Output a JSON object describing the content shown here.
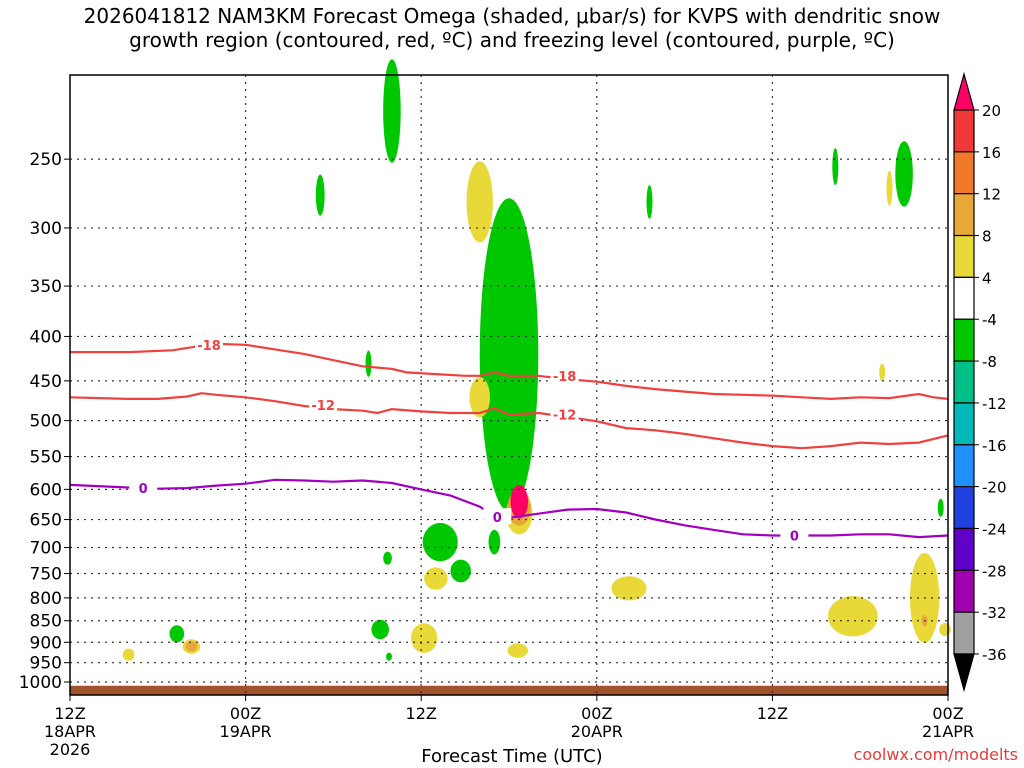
{
  "chart_data": {
    "type": "heatmap",
    "title_line1": "2026041812 NAM3KM Forecast Omega (shaded, μbar/s) for KVPS with dendritic snow",
    "title_line2": "growth region (contoured, red, ºC) and freezing level (contoured, purple, ºC)",
    "xlabel": "Forecast Time (UTC)",
    "ylabel": "Pressure (hPa)",
    "credit": "coolwx.com/modelts",
    "x_range_hours": [
      0,
      54
    ],
    "y_range_hpa": [
      1050,
      180
    ],
    "y_ticks": [
      250,
      300,
      350,
      400,
      450,
      500,
      550,
      600,
      650,
      700,
      750,
      800,
      850,
      900,
      950,
      1000
    ],
    "x_ticks": [
      {
        "hour": 0,
        "label": "12Z",
        "date": "18APR",
        "year": "2026"
      },
      {
        "hour": 12,
        "label": "00Z",
        "date": "19APR",
        "year": ""
      },
      {
        "hour": 24,
        "label": "12Z",
        "date": "",
        "year": ""
      },
      {
        "hour": 36,
        "label": "00Z",
        "date": "20APR",
        "year": ""
      },
      {
        "hour": 48,
        "label": "12Z",
        "date": "",
        "year": ""
      },
      {
        "hour": 60,
        "label": "00Z",
        "date": "21APR",
        "year": ""
      }
    ],
    "colorbar": {
      "labels": [
        "20",
        "16",
        "12",
        "8",
        "4",
        "-4",
        "-8",
        "-12",
        "-16",
        "-20",
        "-24",
        "-28",
        "-32",
        "-36"
      ],
      "colors": [
        "#ff0066",
        "#f03a3a",
        "#f07a2a",
        "#e8a838",
        "#e8d838",
        "#ffffff",
        "#00c800",
        "#00c088",
        "#00b8b8",
        "#1e90ff",
        "#2040e0",
        "#6000c8",
        "#a000b0",
        "#a0a0a0",
        "#000000"
      ]
    },
    "contour_labels": {
      "minus18": "-18",
      "minus12": "-12",
      "zero": "0"
    },
    "contour_colors": {
      "dgz": "#f04040",
      "freezing": "#a000c0"
    },
    "ground_color": "#a0522d",
    "series": [
      {
        "name": "-18C",
        "points": [
          [
            0,
            417
          ],
          [
            4,
            417
          ],
          [
            7,
            415
          ],
          [
            9,
            410
          ],
          [
            10,
            408
          ],
          [
            12,
            409
          ],
          [
            14,
            414
          ],
          [
            16,
            419
          ],
          [
            18,
            426
          ],
          [
            20,
            433
          ],
          [
            22,
            436
          ],
          [
            23,
            440
          ],
          [
            25,
            442
          ],
          [
            27,
            444
          ],
          [
            28,
            444
          ],
          [
            29,
            440
          ],
          [
            30,
            444
          ],
          [
            32,
            444
          ],
          [
            34,
            448
          ],
          [
            36,
            451
          ],
          [
            38,
            456
          ],
          [
            40,
            460
          ],
          [
            42,
            463
          ],
          [
            44,
            466
          ],
          [
            46,
            467
          ],
          [
            48,
            468
          ],
          [
            50,
            470
          ],
          [
            52,
            472
          ],
          [
            54,
            470
          ],
          [
            56,
            471
          ],
          [
            58,
            466
          ],
          [
            59,
            470
          ],
          [
            60,
            472
          ]
        ]
      },
      {
        "name": "-12C",
        "points": [
          [
            0,
            470
          ],
          [
            4,
            472
          ],
          [
            6,
            472
          ],
          [
            8,
            469
          ],
          [
            9,
            465
          ],
          [
            10,
            467
          ],
          [
            12,
            470
          ],
          [
            14,
            475
          ],
          [
            16,
            481
          ],
          [
            18,
            485
          ],
          [
            20,
            487
          ],
          [
            21,
            490
          ],
          [
            22,
            485
          ],
          [
            24,
            488
          ],
          [
            26,
            490
          ],
          [
            28,
            490
          ],
          [
            29,
            484
          ],
          [
            30,
            492
          ],
          [
            32,
            490
          ],
          [
            34,
            495
          ],
          [
            36,
            501
          ],
          [
            38,
            510
          ],
          [
            40,
            513
          ],
          [
            42,
            518
          ],
          [
            44,
            524
          ],
          [
            46,
            530
          ],
          [
            48,
            535
          ],
          [
            50,
            538
          ],
          [
            52,
            535
          ],
          [
            54,
            530
          ],
          [
            56,
            532
          ],
          [
            58,
            530
          ],
          [
            60,
            520
          ]
        ]
      },
      {
        "name": "0C",
        "points": [
          [
            0,
            593
          ],
          [
            4,
            597
          ],
          [
            6,
            599
          ],
          [
            8,
            598
          ],
          [
            10,
            594
          ],
          [
            12,
            591
          ],
          [
            14,
            585
          ],
          [
            16,
            586
          ],
          [
            18,
            588
          ],
          [
            20,
            586
          ],
          [
            22,
            590
          ],
          [
            24,
            600
          ],
          [
            26,
            610
          ],
          [
            28,
            628
          ],
          [
            29,
            644
          ],
          [
            30,
            647
          ],
          [
            32,
            640
          ],
          [
            34,
            633
          ],
          [
            36,
            632
          ],
          [
            38,
            638
          ],
          [
            40,
            650
          ],
          [
            42,
            660
          ],
          [
            44,
            668
          ],
          [
            46,
            676
          ],
          [
            48,
            678
          ],
          [
            50,
            678
          ],
          [
            52,
            678
          ],
          [
            54,
            676
          ],
          [
            56,
            676
          ],
          [
            58,
            681
          ],
          [
            60,
            678
          ]
        ]
      }
    ],
    "omega_regions": [
      {
        "value": -36,
        "t": 30.7,
        "p": 450,
        "dt": 0.4,
        "dp": 75
      },
      {
        "value": -32,
        "t": 30.7,
        "p": 440,
        "dt": 0.5,
        "dp": 85
      },
      {
        "value": -28,
        "t": 30.7,
        "p": 435,
        "dt": 0.6,
        "dp": 100
      },
      {
        "value": -24,
        "t": 30.6,
        "p": 420,
        "dt": 0.8,
        "dp": 130
      },
      {
        "value": -20,
        "t": 30.5,
        "p": 415,
        "dt": 1.0,
        "dp": 160
      },
      {
        "value": -16,
        "t": 30.4,
        "p": 420,
        "dt": 1.2,
        "dp": 190
      },
      {
        "value": -12,
        "t": 30.2,
        "p": 420,
        "dt": 1.6,
        "dp": 220
      },
      {
        "value": -8,
        "t": 30.0,
        "p": 420,
        "dt": 2.0,
        "dp": 330
      },
      {
        "value": -4,
        "t": 22.0,
        "p": 220,
        "dt": 0.6,
        "dp": 60
      },
      {
        "value": -4,
        "t": 17.1,
        "p": 275,
        "dt": 0.3,
        "dp": 30
      },
      {
        "value": -4,
        "t": 7.3,
        "p": 880,
        "dt": 0.5,
        "dp": 40
      },
      {
        "value": -4,
        "t": 25.3,
        "p": 690,
        "dt": 1.2,
        "dp": 70
      },
      {
        "value": -4,
        "t": 29.0,
        "p": 690,
        "dt": 0.4,
        "dp": 45
      },
      {
        "value": -4,
        "t": 26.7,
        "p": 745,
        "dt": 0.7,
        "dp": 45
      },
      {
        "value": -4,
        "t": 21.2,
        "p": 870,
        "dt": 0.6,
        "dp": 45
      },
      {
        "value": -4,
        "t": 20.4,
        "p": 430,
        "dt": 0.2,
        "dp": 30
      },
      {
        "value": -4,
        "t": 21.7,
        "p": 720,
        "dt": 0.3,
        "dp": 25
      },
      {
        "value": -4,
        "t": 21.8,
        "p": 935,
        "dt": 0.2,
        "dp": 20
      },
      {
        "value": -4,
        "t": 39.6,
        "p": 280,
        "dt": 0.2,
        "dp": 25
      },
      {
        "value": -4,
        "t": 52.3,
        "p": 255,
        "dt": 0.2,
        "dp": 25
      },
      {
        "value": -4,
        "t": 57.0,
        "p": 260,
        "dt": 0.6,
        "dp": 45
      },
      {
        "value": -4,
        "t": 59.5,
        "p": 630,
        "dt": 0.1,
        "dp": 30
      },
      {
        "value": 4,
        "t": 28.0,
        "p": 280,
        "dt": 0.9,
        "dp": 60
      },
      {
        "value": 4,
        "t": 28.0,
        "p": 470,
        "dt": 0.7,
        "dp": 50
      },
      {
        "value": 4,
        "t": 30.7,
        "p": 640,
        "dt": 0.9,
        "dp": 70
      },
      {
        "value": 4,
        "t": 25.0,
        "p": 760,
        "dt": 0.8,
        "dp": 45
      },
      {
        "value": 4,
        "t": 24.2,
        "p": 890,
        "dt": 0.9,
        "dp": 70
      },
      {
        "value": 4,
        "t": 30.6,
        "p": 920,
        "dt": 0.7,
        "dp": 35
      },
      {
        "value": 4,
        "t": 38.2,
        "p": 780,
        "dt": 1.2,
        "dp": 50
      },
      {
        "value": 4,
        "t": 53.5,
        "p": 840,
        "dt": 1.7,
        "dp": 90
      },
      {
        "value": 4,
        "t": 58.4,
        "p": 800,
        "dt": 1.0,
        "dp": 190
      },
      {
        "value": 4,
        "t": 4.0,
        "p": 930,
        "dt": 0.4,
        "dp": 30
      },
      {
        "value": 4,
        "t": 8.3,
        "p": 910,
        "dt": 0.6,
        "dp": 35
      },
      {
        "value": 4,
        "t": 56.0,
        "p": 270,
        "dt": 0.1,
        "dp": 25
      },
      {
        "value": 4,
        "t": 55.5,
        "p": 440,
        "dt": 0.2,
        "dp": 20
      },
      {
        "value": 4,
        "t": 59.8,
        "p": 870,
        "dt": 0.4,
        "dp": 30
      },
      {
        "value": 8,
        "t": 30.7,
        "p": 630,
        "dt": 0.8,
        "dp": 60
      },
      {
        "value": 8,
        "t": 8.3,
        "p": 910,
        "dt": 0.4,
        "dp": 25
      },
      {
        "value": 8,
        "t": 58.4,
        "p": 850,
        "dt": 0.2,
        "dp": 25
      },
      {
        "value": 20,
        "t": 30.7,
        "p": 620,
        "dt": 0.6,
        "dp": 55
      }
    ]
  }
}
